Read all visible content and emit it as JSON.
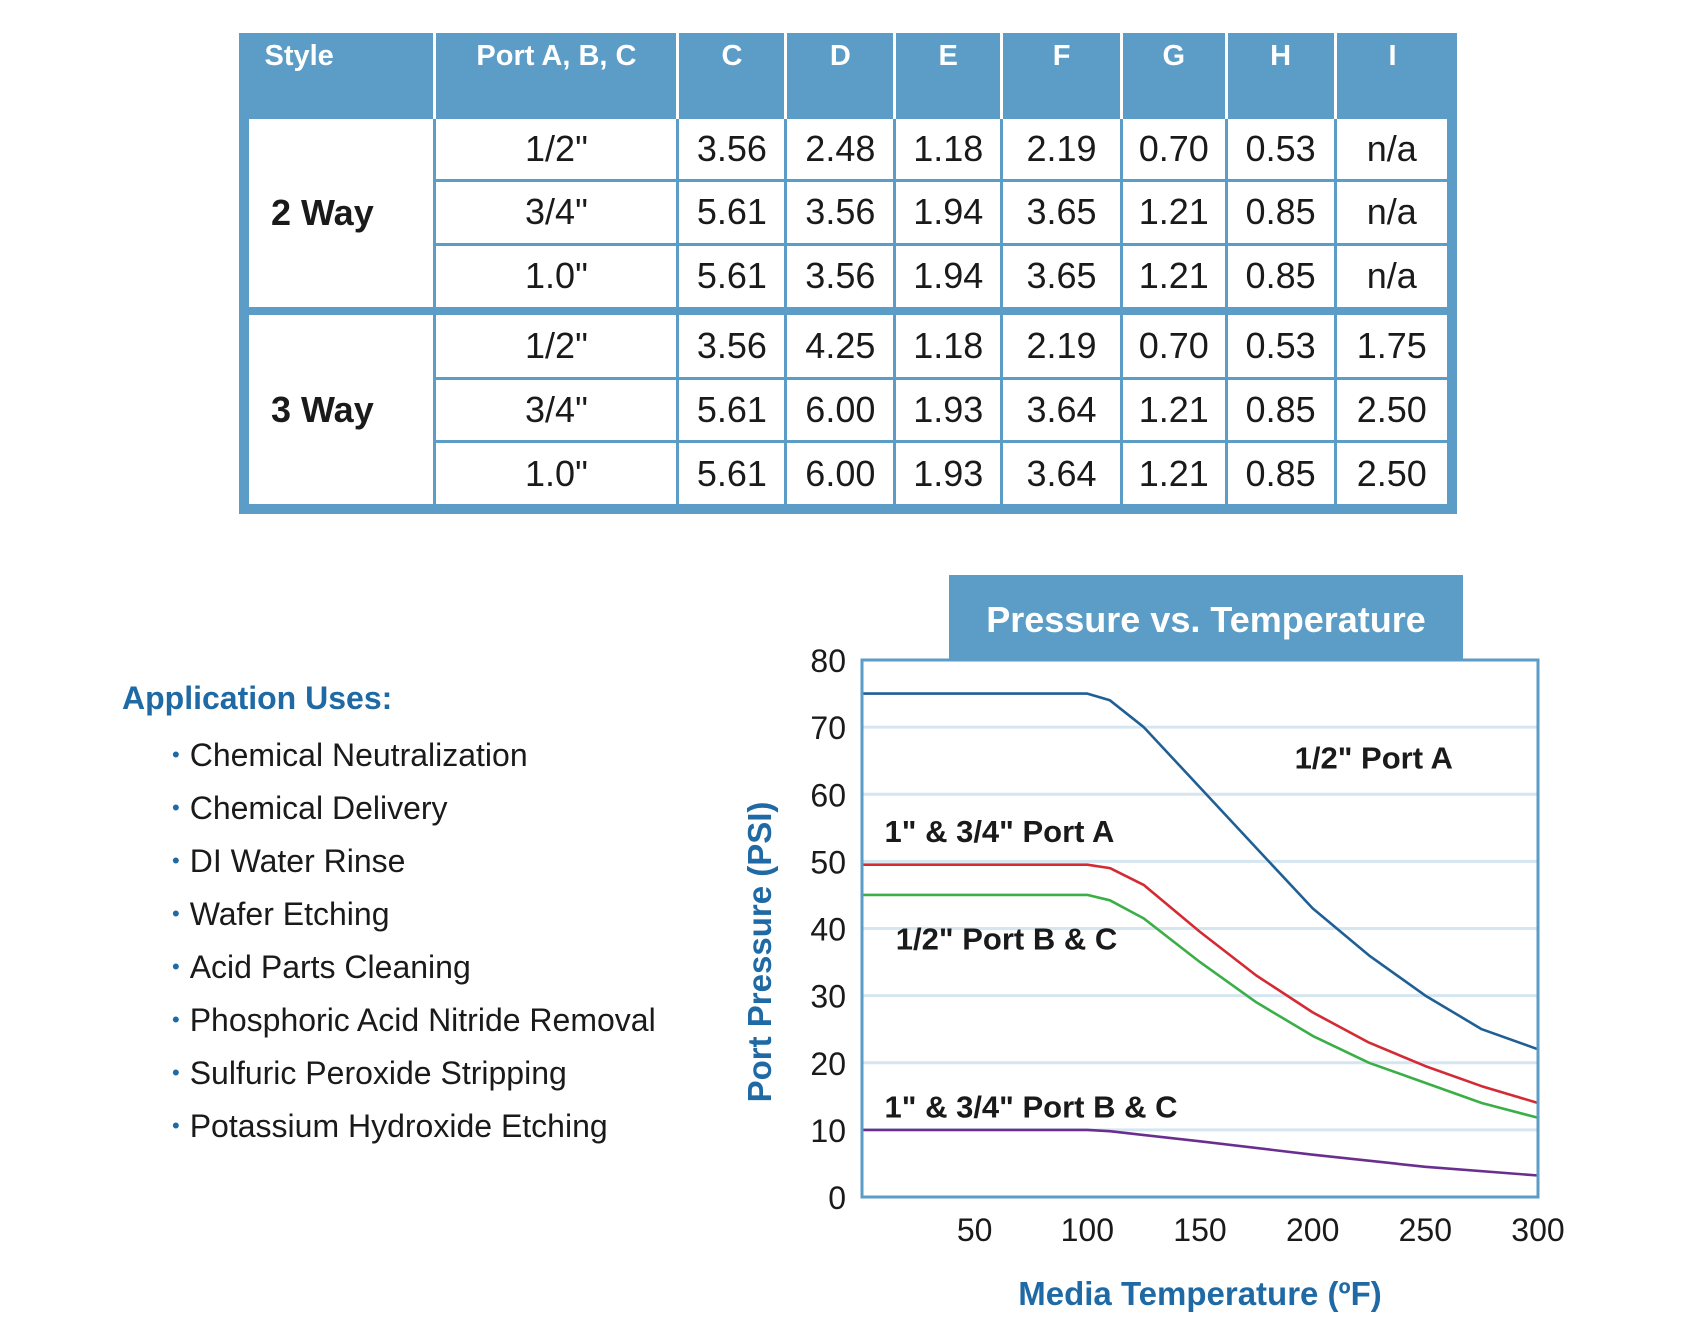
{
  "table": {
    "headers": [
      "Style",
      "Port A, B, C",
      "C",
      "D",
      "E",
      "F",
      "G",
      "H",
      "I"
    ],
    "groups": [
      {
        "style": "2 Way",
        "rows": [
          [
            "1/2\"",
            "3.56",
            "2.48",
            "1.18",
            "2.19",
            "0.70",
            "0.53",
            "n/a"
          ],
          [
            "3/4\"",
            "5.61",
            "3.56",
            "1.94",
            "3.65",
            "1.21",
            "0.85",
            "n/a"
          ],
          [
            "1.0\"",
            "5.61",
            "3.56",
            "1.94",
            "3.65",
            "1.21",
            "0.85",
            "n/a"
          ]
        ]
      },
      {
        "style": "3 Way",
        "rows": [
          [
            "1/2\"",
            "3.56",
            "4.25",
            "1.18",
            "2.19",
            "0.70",
            "0.53",
            "1.75"
          ],
          [
            "3/4\"",
            "5.61",
            "6.00",
            "1.93",
            "3.64",
            "1.21",
            "0.85",
            "2.50"
          ],
          [
            "1.0\"",
            "5.61",
            "6.00",
            "1.93",
            "3.64",
            "1.21",
            "0.85",
            "2.50"
          ]
        ]
      }
    ]
  },
  "applications": {
    "title": "Application Uses:",
    "items": [
      "Chemical Neutralization",
      "Chemical Delivery",
      "DI Water Rinse",
      "Wafer Etching",
      "Acid Parts Cleaning",
      "Phosphoric Acid Nitride Removal",
      "Sulfuric Peroxide Stripping",
      "Potassium Hydroxide Etching"
    ]
  },
  "chart_data": {
    "type": "line",
    "title": "Pressure vs. Temperature",
    "xlabel": "Media Temperature (ºF)",
    "ylabel": "Port Pressure (PSI)",
    "xlim": [
      0,
      300
    ],
    "ylim": [
      0,
      80
    ],
    "xticks": [
      50,
      100,
      150,
      200,
      250,
      300
    ],
    "yticks": [
      0,
      10,
      20,
      30,
      40,
      50,
      60,
      70,
      80
    ],
    "grid": true,
    "colors": {
      "accent": "#5b9dc6",
      "title_text": "#ffffff",
      "axis_label": "#1f6aa5",
      "gridline": "#d6e6f1"
    },
    "series": [
      {
        "name": "1/2\" Port A",
        "color": "#1f5f96",
        "points": [
          [
            0,
            75
          ],
          [
            100,
            75
          ],
          [
            110,
            74
          ],
          [
            125,
            70
          ],
          [
            150,
            61
          ],
          [
            175,
            52
          ],
          [
            200,
            43
          ],
          [
            225,
            36
          ],
          [
            250,
            30
          ],
          [
            275,
            25
          ],
          [
            300,
            22
          ]
        ]
      },
      {
        "name": "1\" & 3/4\" Port A",
        "color": "#d42a33",
        "points": [
          [
            0,
            49.5
          ],
          [
            100,
            49.5
          ],
          [
            110,
            49
          ],
          [
            125,
            46.5
          ],
          [
            150,
            39.5
          ],
          [
            175,
            33
          ],
          [
            200,
            27.5
          ],
          [
            225,
            23
          ],
          [
            250,
            19.5
          ],
          [
            275,
            16.5
          ],
          [
            300,
            14
          ]
        ]
      },
      {
        "name": "1/2\" Port B & C",
        "color": "#3aae47",
        "points": [
          [
            0,
            45
          ],
          [
            100,
            45
          ],
          [
            110,
            44.2
          ],
          [
            125,
            41.5
          ],
          [
            150,
            35
          ],
          [
            175,
            29
          ],
          [
            200,
            24
          ],
          [
            225,
            20
          ],
          [
            250,
            17
          ],
          [
            275,
            14
          ],
          [
            300,
            11.8
          ]
        ]
      },
      {
        "name": "1\" & 3/4\" Port B & C",
        "color": "#6a2f8e",
        "points": [
          [
            0,
            10
          ],
          [
            100,
            10
          ],
          [
            110,
            9.8
          ],
          [
            150,
            8.3
          ],
          [
            200,
            6.3
          ],
          [
            250,
            4.5
          ],
          [
            300,
            3.2
          ]
        ]
      }
    ],
    "annotations": [
      {
        "text": "1/2\" Port A",
        "x": 192,
        "y": 65.5
      },
      {
        "text": "1\" & 3/4\" Port A",
        "x": 10,
        "y": 54.5
      },
      {
        "text": "1/2\" Port B & C",
        "x": 15,
        "y": 38.5
      },
      {
        "text": "1\" & 3/4\" Port B & C",
        "x": 10,
        "y": 13.5
      }
    ]
  }
}
